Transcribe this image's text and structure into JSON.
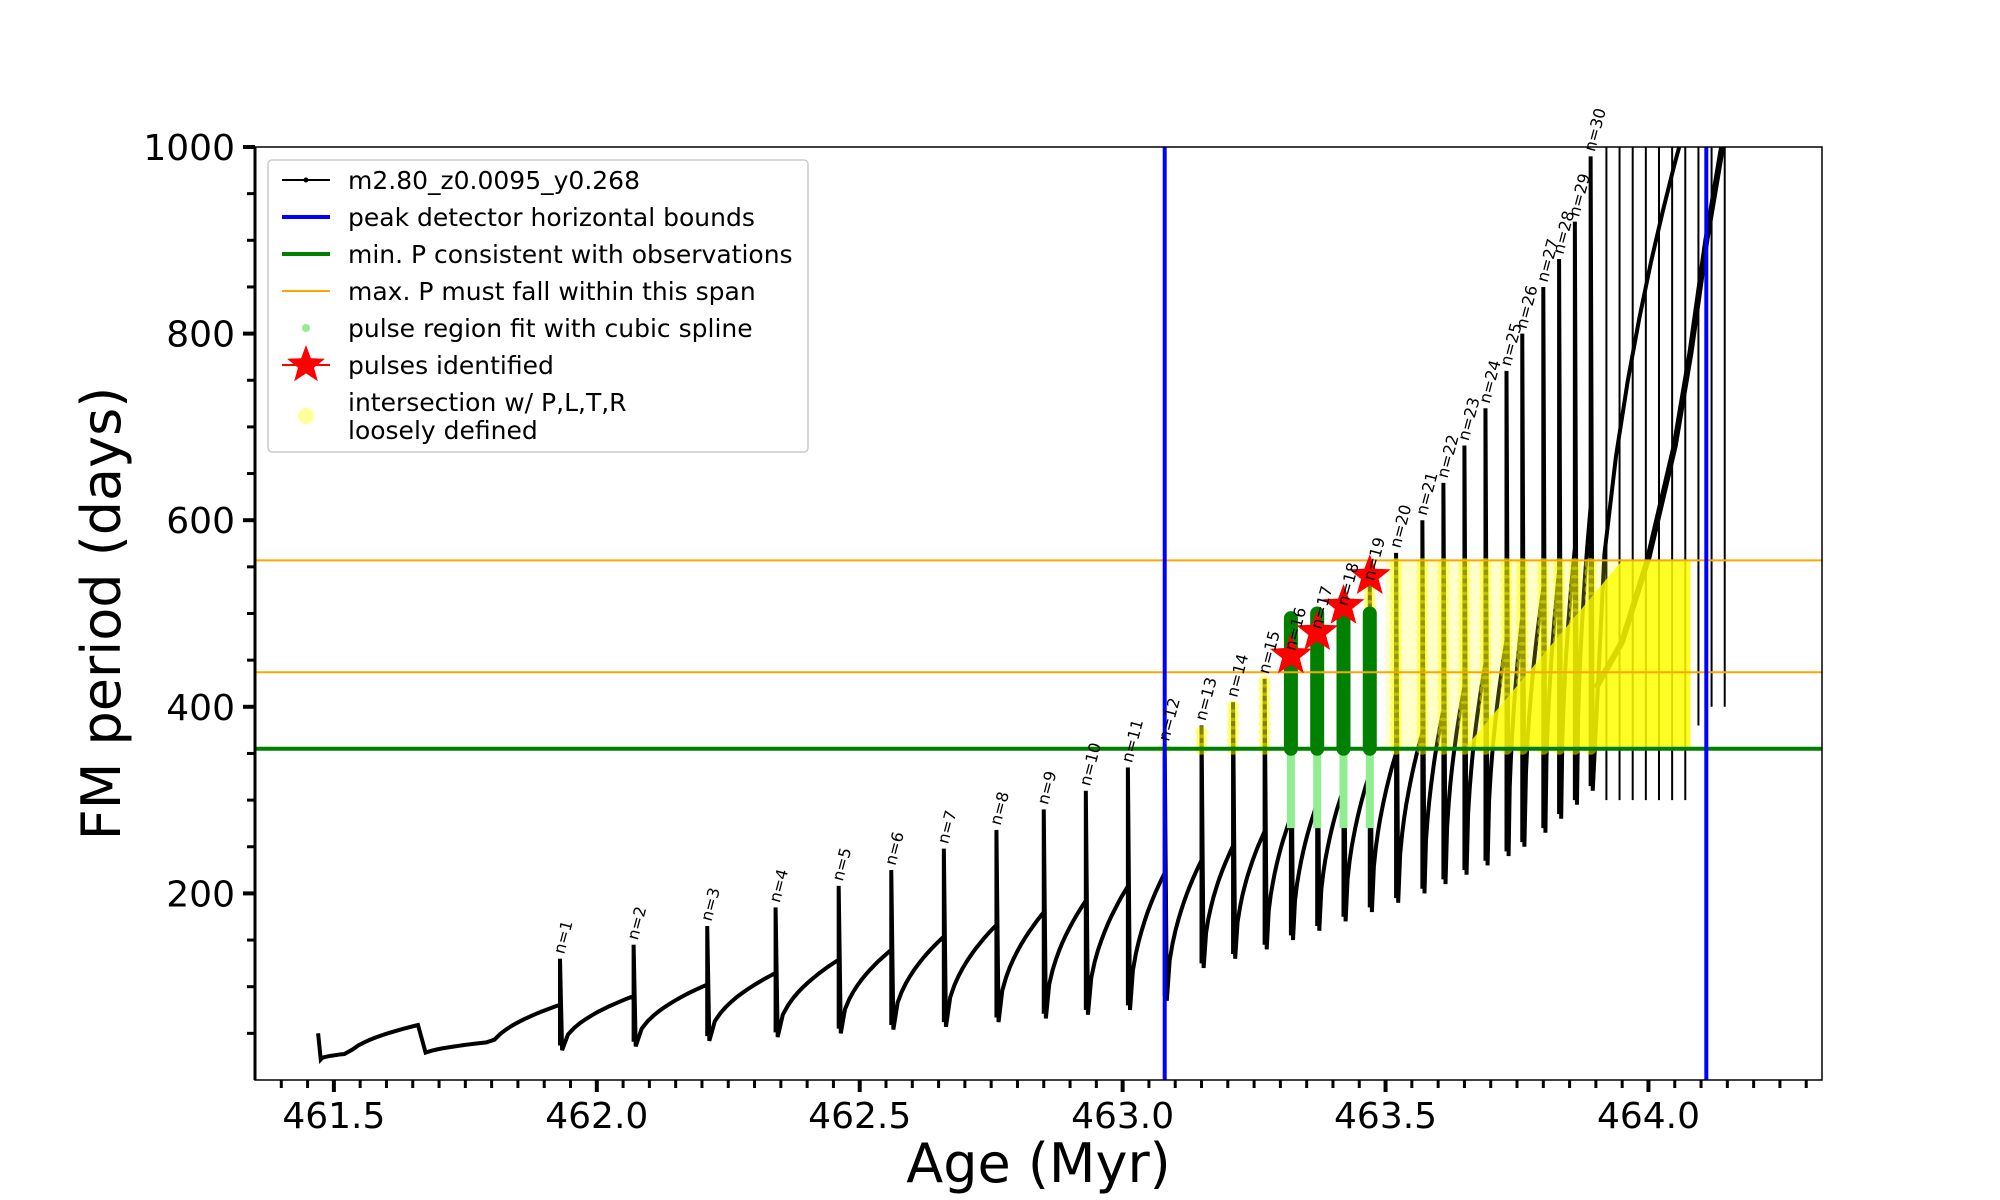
{
  "chart_data": {
    "type": "line",
    "xlabel": "Age (Myr)",
    "ylabel": "FM period (days)",
    "xlim": [
      461.35,
      464.33
    ],
    "ylim": [
      0,
      1000
    ],
    "xticks": [
      461.5,
      462.0,
      462.5,
      463.0,
      463.5,
      464.0
    ],
    "xtick_labels": [
      "461.5",
      "462.0",
      "462.5",
      "463.0",
      "463.5",
      "464.0"
    ],
    "yticks": [
      200,
      400,
      600,
      800,
      1000
    ],
    "ytick_labels": [
      "200",
      "400",
      "600",
      "800",
      "1000"
    ],
    "legend_position": "upper left",
    "legend": [
      {
        "label": "m2.80_z0.0095_y0.268",
        "style": "black-line-dot"
      },
      {
        "label": "peak detector horizontal bounds",
        "style": "blue-line"
      },
      {
        "label": "min. P consistent with observations",
        "style": "green-line"
      },
      {
        "label": "max. P must fall within this span",
        "style": "orange-line"
      },
      {
        "label": "pulse region fit with cubic spline",
        "style": "lightgreen-dot"
      },
      {
        "label": "pulses identified",
        "style": "red-star"
      },
      {
        "label": "intersection w/ P,L,T,R",
        "label2": "loosely defined",
        "style": "yellow-dot"
      }
    ],
    "vlines": [
      463.08,
      464.11
    ],
    "min_period": 355,
    "max_period_span": [
      437,
      557
    ],
    "pulses": [
      {
        "n": 1,
        "age": 461.93,
        "min": 32,
        "peak": 130
      },
      {
        "n": 2,
        "age": 462.07,
        "min": 36,
        "peak": 145
      },
      {
        "n": 3,
        "age": 462.21,
        "min": 42,
        "peak": 165
      },
      {
        "n": 4,
        "age": 462.34,
        "min": 46,
        "peak": 185
      },
      {
        "n": 5,
        "age": 462.46,
        "min": 50,
        "peak": 208
      },
      {
        "n": 6,
        "age": 462.56,
        "min": 54,
        "peak": 225
      },
      {
        "n": 7,
        "age": 462.66,
        "min": 57,
        "peak": 248
      },
      {
        "n": 8,
        "age": 462.76,
        "min": 62,
        "peak": 268
      },
      {
        "n": 9,
        "age": 462.85,
        "min": 66,
        "peak": 290
      },
      {
        "n": 10,
        "age": 462.93,
        "min": 70,
        "peak": 310
      },
      {
        "n": 11,
        "age": 463.01,
        "min": 75,
        "peak": 335
      },
      {
        "n": 12,
        "age": 463.08,
        "min": 85,
        "peak": 358
      },
      {
        "n": 13,
        "age": 463.15,
        "min": 120,
        "peak": 380
      },
      {
        "n": 14,
        "age": 463.21,
        "min": 130,
        "peak": 405
      },
      {
        "n": 15,
        "age": 463.27,
        "min": 140,
        "peak": 430
      },
      {
        "n": 16,
        "age": 463.32,
        "min": 150,
        "peak": 455
      },
      {
        "n": 17,
        "age": 463.37,
        "min": 160,
        "peak": 478
      },
      {
        "n": 18,
        "age": 463.42,
        "min": 170,
        "peak": 503
      },
      {
        "n": 19,
        "age": 463.47,
        "min": 180,
        "peak": 530
      },
      {
        "n": 20,
        "age": 463.52,
        "min": 190,
        "peak": 565
      },
      {
        "n": 21,
        "age": 463.57,
        "min": 200,
        "peak": 600
      },
      {
        "n": 22,
        "age": 463.61,
        "min": 210,
        "peak": 640
      },
      {
        "n": 23,
        "age": 463.65,
        "min": 220,
        "peak": 680
      },
      {
        "n": 24,
        "age": 463.69,
        "min": 230,
        "peak": 720
      },
      {
        "n": 25,
        "age": 463.73,
        "min": 240,
        "peak": 760
      },
      {
        "n": 26,
        "age": 463.76,
        "min": 250,
        "peak": 800
      },
      {
        "n": 27,
        "age": 463.8,
        "min": 265,
        "peak": 850
      },
      {
        "n": 28,
        "age": 463.83,
        "min": 280,
        "peak": 880
      },
      {
        "n": 29,
        "age": 463.86,
        "min": 295,
        "peak": 920
      },
      {
        "n": 30,
        "age": 463.89,
        "min": 310,
        "peak": 990
      }
    ],
    "pulse_labels": [
      "n=1",
      "n=2",
      "n=3",
      "n=4",
      "n=5",
      "n=6",
      "n=7",
      "n=8",
      "n=9",
      "n=10",
      "n=11",
      "n=12",
      "n=13",
      "n=14",
      "n=15",
      "n=16",
      "n=17",
      "n=18",
      "n=19",
      "n=20",
      "n=21",
      "n=22",
      "n=23",
      "n=24",
      "n=25",
      "n=26",
      "n=27",
      "n=28",
      "n=29",
      "n=30"
    ],
    "pulses_identified": [
      {
        "age": 463.32,
        "period": 455
      },
      {
        "age": 463.37,
        "period": 480
      },
      {
        "age": 463.42,
        "period": 508
      },
      {
        "age": 463.47,
        "period": 540
      }
    ]
  },
  "colors": {
    "track": "#000000",
    "bounds": "#0000ff",
    "min_p": "#008000",
    "max_p": "#ffa500",
    "spline": "#90ee90",
    "pulse": "#ff0000",
    "intersection": "#ffff00"
  }
}
